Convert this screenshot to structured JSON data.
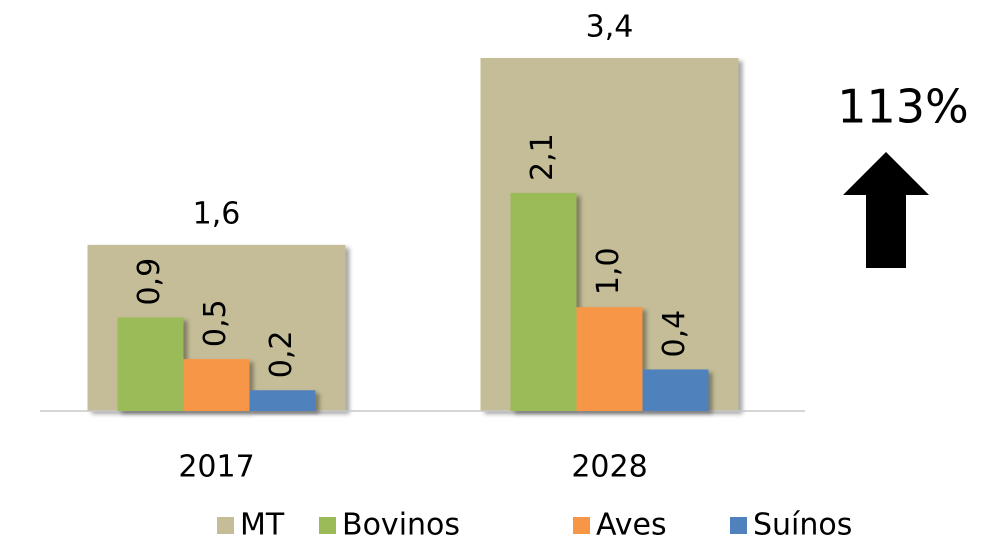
{
  "chart_data": {
    "type": "bar",
    "categories": [
      "2017",
      "2028"
    ],
    "series": [
      {
        "name": "MT",
        "color": "#c4bd97",
        "values": [
          1.6,
          3.4
        ],
        "value_labels": [
          "1,6",
          "3,4"
        ]
      },
      {
        "name": "Bovinos",
        "color": "#9bbb59",
        "values": [
          0.9,
          2.1
        ],
        "value_labels": [
          "0,9",
          "2,1"
        ]
      },
      {
        "name": "Aves",
        "color": "#f79646",
        "values": [
          0.5,
          1.0
        ],
        "value_labels": [
          "0,5",
          "1,0"
        ]
      },
      {
        "name": "Suínos",
        "color": "#4f81bd",
        "values": [
          0.2,
          0.4
        ],
        "value_labels": [
          "0,2",
          "0,4"
        ]
      }
    ],
    "ylim": [
      0,
      3.4
    ],
    "annotation": "113%",
    "legend": "bottom"
  }
}
